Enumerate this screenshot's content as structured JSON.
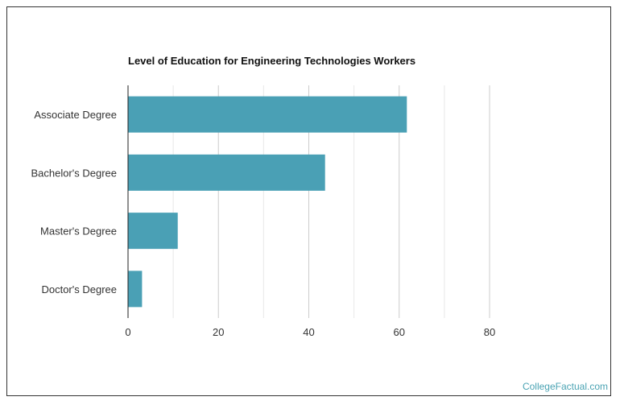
{
  "chart_data": {
    "type": "bar",
    "orientation": "horizontal",
    "title": "Level of Education for Engineering Technologies Workers",
    "categories": [
      "Associate Degree",
      "Bachelor's Degree",
      "Master's Degree",
      "Doctor's Degree"
    ],
    "values": [
      61.7,
      43.6,
      11.0,
      3.1
    ],
    "xlim": [
      0,
      80
    ],
    "xticks": [
      "0",
      "20",
      "40",
      "60",
      "80"
    ],
    "grid": true,
    "bar_color": "#4aa0b5"
  },
  "branding": {
    "watermark": "CollegeFactual.com"
  }
}
